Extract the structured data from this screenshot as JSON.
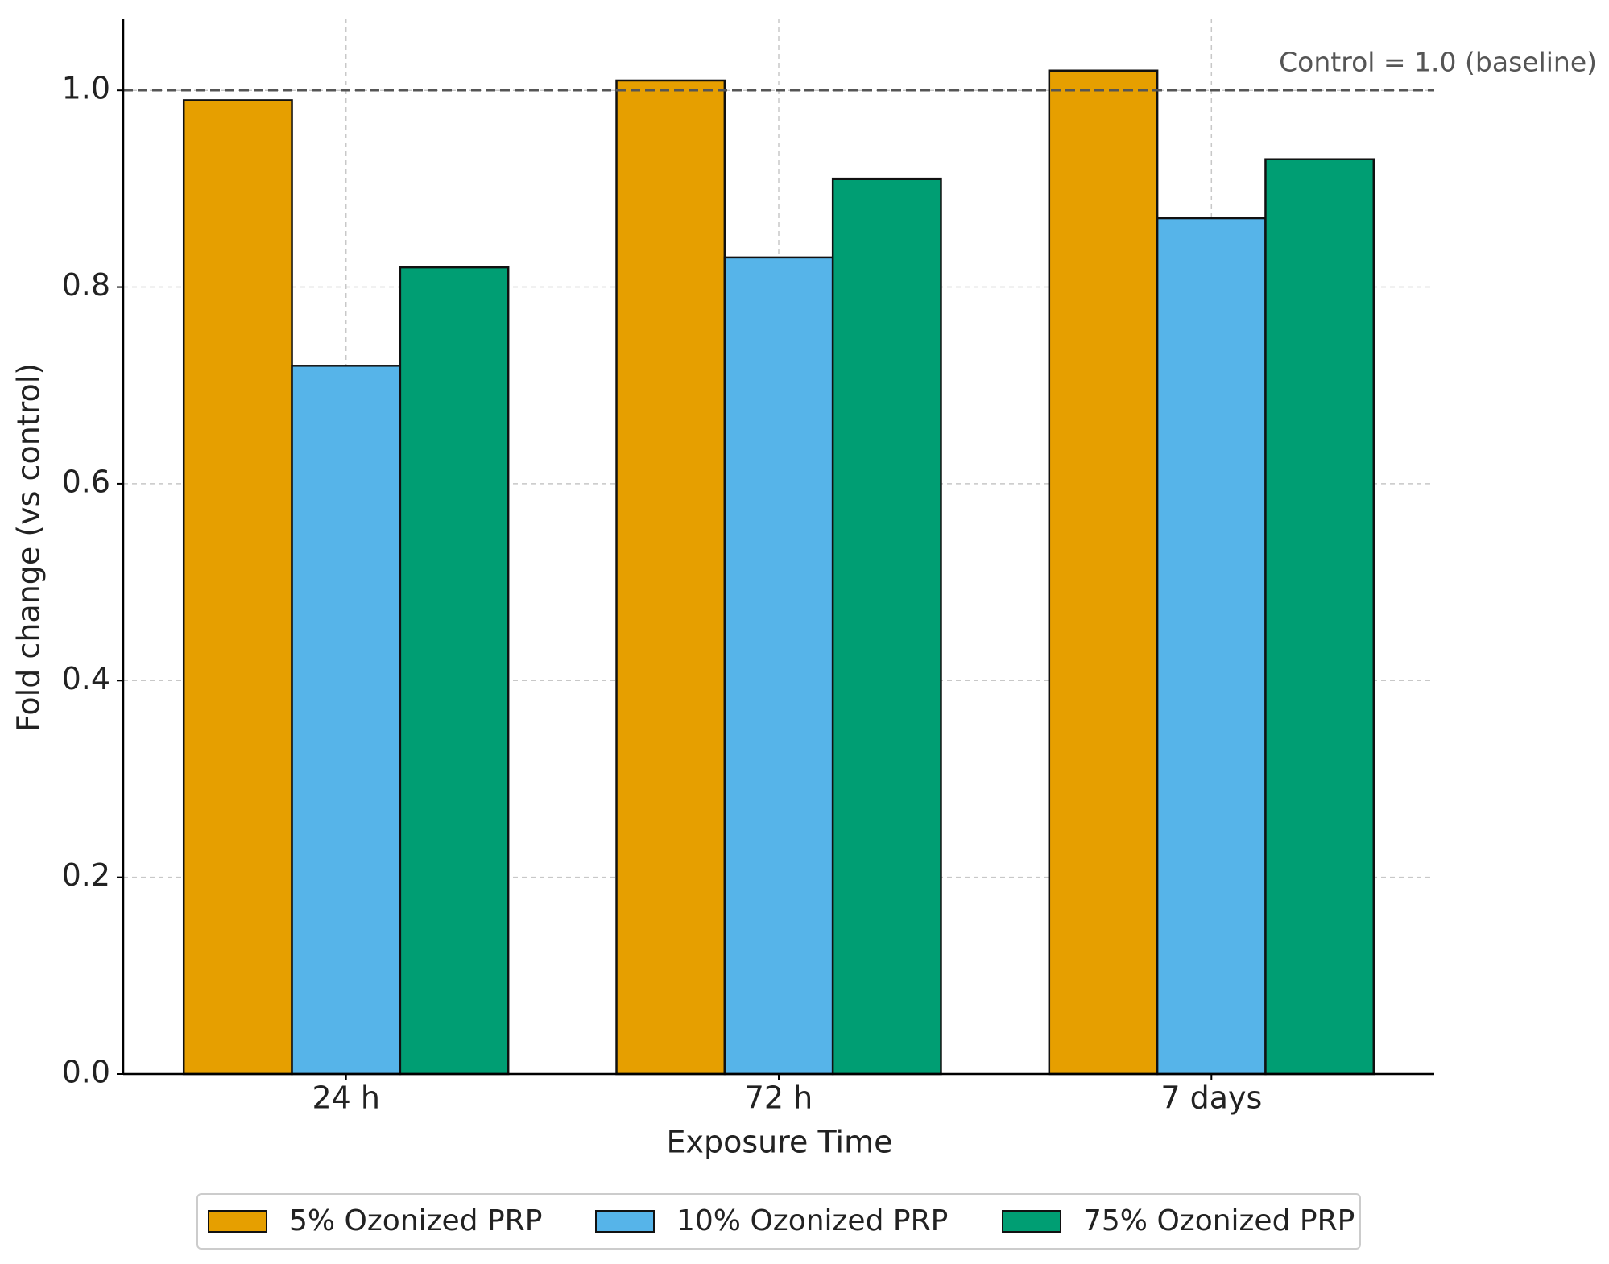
{
  "chart_data": {
    "type": "bar",
    "x_label": "Exposure Time",
    "y_label": "Fold change (vs control)",
    "categories": [
      "24 h",
      "72 h",
      "7 days"
    ],
    "series": [
      {
        "name": "5% Ozonized PRP",
        "color": "#e69f00",
        "values": [
          0.99,
          1.01,
          1.02
        ]
      },
      {
        "name": "10% Ozonized PRP",
        "color": "#56b4e9",
        "values": [
          0.72,
          0.83,
          0.87
        ]
      },
      {
        "name": "75% Ozonized PRP",
        "color": "#009e73",
        "values": [
          0.82,
          0.91,
          0.93
        ]
      }
    ],
    "ylim": [
      0,
      1.073
    ],
    "yticks": [
      {
        "value": 0,
        "label": "0.0"
      },
      {
        "value": 0.2,
        "label": "0.2"
      },
      {
        "value": 0.4,
        "label": "0.4"
      },
      {
        "value": 0.6,
        "label": "0.6"
      },
      {
        "value": 0.8,
        "label": "0.8"
      },
      {
        "value": 1.0,
        "label": "1.0"
      }
    ],
    "reference_line": {
      "value": 1.0,
      "label": "Control = 1.0 (baseline)"
    },
    "grid": true,
    "legend": "bottom"
  }
}
